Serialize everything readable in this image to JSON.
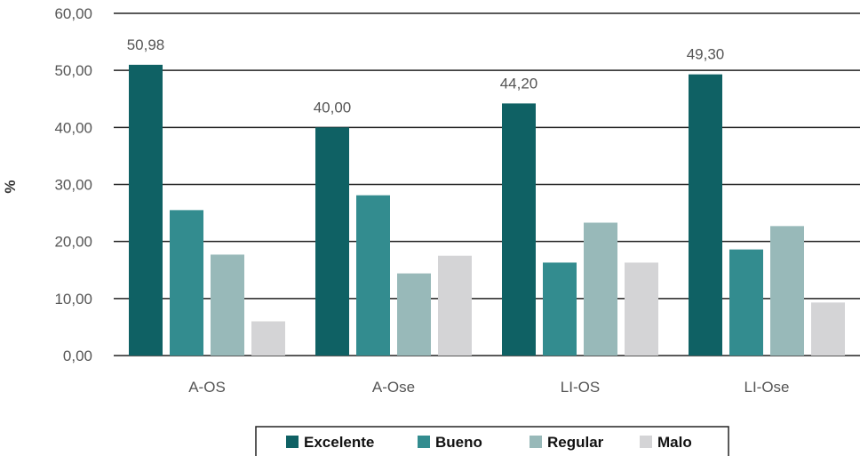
{
  "chart_data": {
    "type": "bar",
    "title": "",
    "xlabel": "",
    "ylabel": "%",
    "ylim": [
      0,
      60
    ],
    "yticks": [
      0,
      10,
      20,
      30,
      40,
      50,
      60
    ],
    "ytick_labels": [
      "0,00",
      "10,00",
      "20,00",
      "30,00",
      "40,00",
      "50,00",
      "60,00"
    ],
    "grid": true,
    "legend_position": "bottom",
    "categories": [
      "A-OS",
      "A-Ose",
      "LI-OS",
      "LI-Ose"
    ],
    "series": [
      {
        "name": "Excelente",
        "color": "#0f6164",
        "values": [
          50.98,
          40.0,
          44.2,
          49.3
        ],
        "labels": [
          "50,98",
          "40,00",
          "44,20",
          "49,30"
        ]
      },
      {
        "name": "Bueno",
        "color": "#338c8f",
        "values": [
          25.5,
          28.1,
          16.3,
          18.6
        ],
        "labels": [
          "",
          "",
          "",
          ""
        ]
      },
      {
        "name": "Regular",
        "color": "#98b9b9",
        "values": [
          17.7,
          14.4,
          23.3,
          22.7
        ],
        "labels": [
          "",
          "",
          "",
          ""
        ]
      },
      {
        "name": "Malo",
        "color": "#d4d4d6",
        "values": [
          6.0,
          17.5,
          16.3,
          9.3
        ],
        "labels": [
          "",
          "",
          "",
          ""
        ]
      }
    ]
  }
}
